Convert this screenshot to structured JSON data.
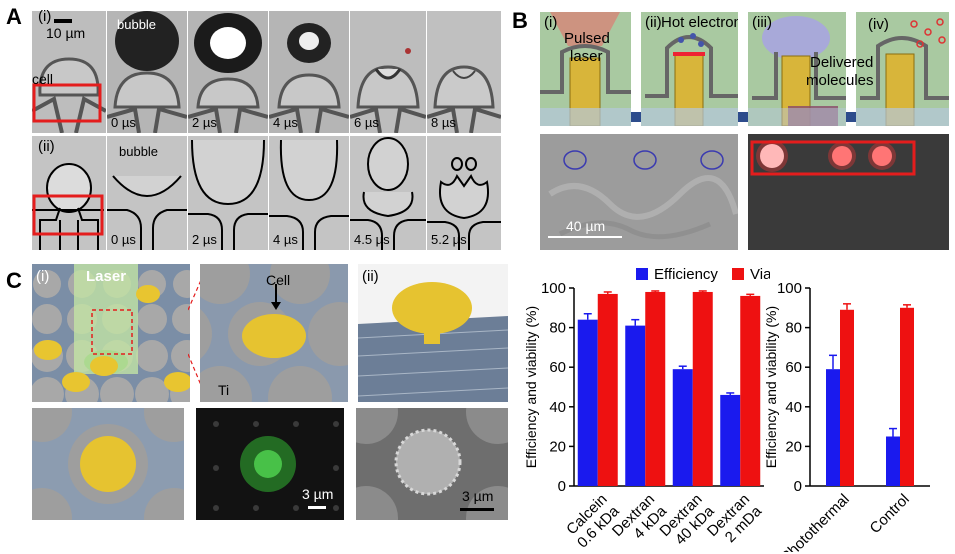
{
  "panelA": {
    "letter": "A",
    "row1": {
      "label": "(i)",
      "scale": "10 µm",
      "bubble": "bubble",
      "cell": "cell",
      "times": [
        "0 µs",
        "2 µs",
        "4 µs",
        "6 µs",
        "8 µs"
      ]
    },
    "row2": {
      "label": "(ii)",
      "bubble": "bubble",
      "times": [
        "0 µs",
        "2 µs",
        "4 µs",
        "4.5 µs",
        "5.2 µs"
      ]
    }
  },
  "panelB": {
    "letter": "B",
    "steps": [
      "(i)",
      "(ii)",
      "(iii)",
      "(iv)"
    ],
    "pulsed": "Pulsed",
    "laser": "laser",
    "hot": "Hot electrons",
    "delivered1": "Delivered",
    "delivered2": "molecules",
    "scale": "40 µm"
  },
  "panelC": {
    "letter": "C",
    "sub1": "(i)",
    "sub2": "(ii)",
    "laser": "Laser",
    "cell": "Cell",
    "ti": "Ti",
    "scale1": "3 µm",
    "scale2": "3 µm"
  },
  "colors": {
    "efficiency": "#1a1aee",
    "viability": "#ee1111"
  },
  "chart_data": [
    {
      "type": "bar",
      "ylabel": "Efficiency and viability (%)",
      "ylim": [
        0,
        100
      ],
      "yticks": [
        0,
        20,
        40,
        60,
        80,
        100
      ],
      "legend": [
        "Efficiency",
        "Viability"
      ],
      "categories": [
        [
          "Calcein",
          "0.6 kDa"
        ],
        [
          "Dextran",
          "4 kDa"
        ],
        [
          "Dextran",
          "40 kDa"
        ],
        [
          "Dextran",
          "2 mDa"
        ]
      ],
      "series": [
        {
          "name": "Efficiency",
          "values": [
            84,
            81,
            59,
            46
          ],
          "err": [
            3,
            3,
            1.5,
            1
          ]
        },
        {
          "name": "Viability",
          "values": [
            97,
            98,
            98,
            96
          ],
          "err": [
            1,
            0.5,
            0.5,
            0.8
          ]
        }
      ]
    },
    {
      "type": "bar",
      "ylabel": "Efficiency and viability (%)",
      "ylim": [
        0,
        100
      ],
      "yticks": [
        0,
        20,
        40,
        60,
        80,
        100
      ],
      "categories": [
        [
          "Photothermal"
        ],
        [
          "Control"
        ]
      ],
      "series": [
        {
          "name": "Efficiency",
          "values": [
            59,
            25
          ],
          "err": [
            7,
            4
          ]
        },
        {
          "name": "Viability",
          "values": [
            89,
            90
          ],
          "err": [
            3,
            1.5
          ]
        }
      ]
    }
  ]
}
